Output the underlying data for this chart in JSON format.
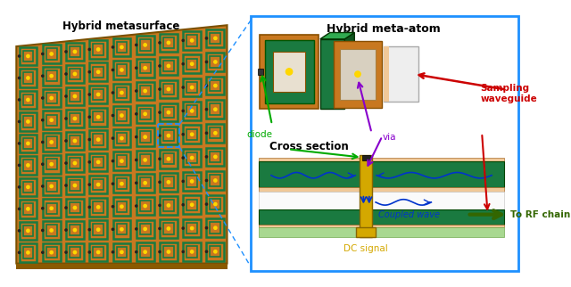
{
  "bg_color": "#ffffff",
  "left_title": "Hybrid metasurface",
  "right_title": "Hybrid meta-atom",
  "cross_section_title": "Cross section",
  "orange": "#C87820",
  "orange_light": "#D4902A",
  "green_pcb": "#1A7A40",
  "green_dark": "#155F30",
  "yellow_via": "#D4A800",
  "light_peach": "#F0C898",
  "light_green_bot": "#A8D890",
  "blue_border": "#1E90FF",
  "ann_green": "#00AA00",
  "ann_red": "#CC0000",
  "ann_purple": "#8800CC",
  "ann_blue": "#0033CC",
  "ann_dkgreen": "#336600",
  "white_bg": "#F5F5F5",
  "gray_wg": "#D8D8D8",
  "label_diode": "diode",
  "label_via": "via",
  "label_sampling": "Sampling\nwaveguide",
  "label_cross": "Cross section",
  "label_coupled": "Coupled wave",
  "label_dc": "DC signal",
  "label_rf": "To RF chain"
}
